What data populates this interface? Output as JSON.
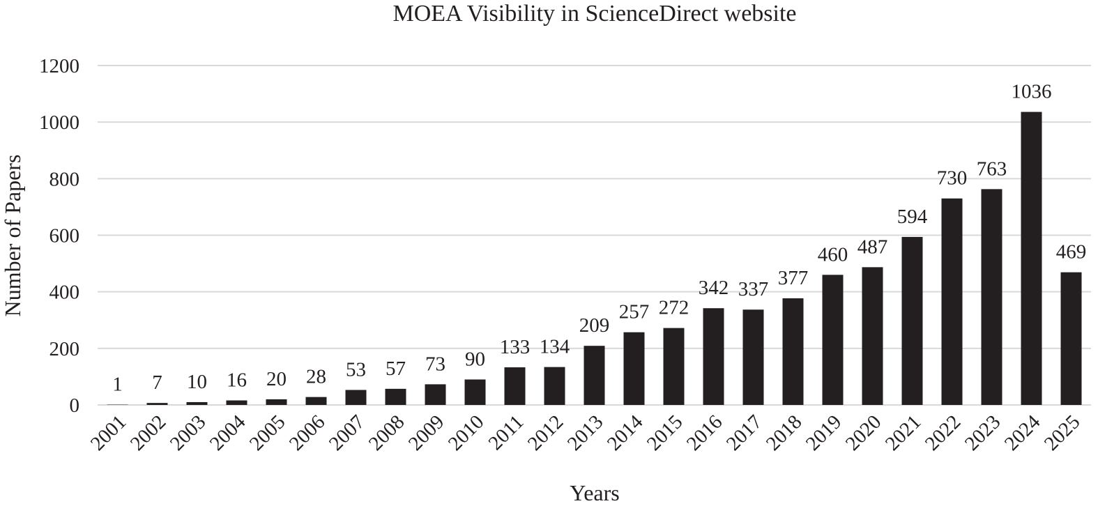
{
  "chart_data": {
    "type": "bar",
    "title": "MOEA Visibility in ScienceDirect website",
    "xlabel": "Years",
    "ylabel": "Number of Papers",
    "categories": [
      "2001",
      "2002",
      "2003",
      "2004",
      "2005",
      "2006",
      "2007",
      "2008",
      "2009",
      "2010",
      "2011",
      "2012",
      "2013",
      "2014",
      "2015",
      "2016",
      "2017",
      "2018",
      "2019",
      "2020",
      "2021",
      "2022",
      "2023",
      "2024",
      "2025"
    ],
    "values": [
      1,
      7,
      10,
      16,
      20,
      28,
      53,
      57,
      73,
      90,
      133,
      134,
      209,
      257,
      272,
      342,
      337,
      377,
      460,
      487,
      594,
      730,
      763,
      1036,
      469
    ],
    "ylim": [
      0,
      1200
    ],
    "yticks": [
      0,
      200,
      400,
      600,
      800,
      1000,
      1200
    ],
    "grid": true,
    "bar_color": "#231f20",
    "grid_color": "#d9d9d9"
  }
}
